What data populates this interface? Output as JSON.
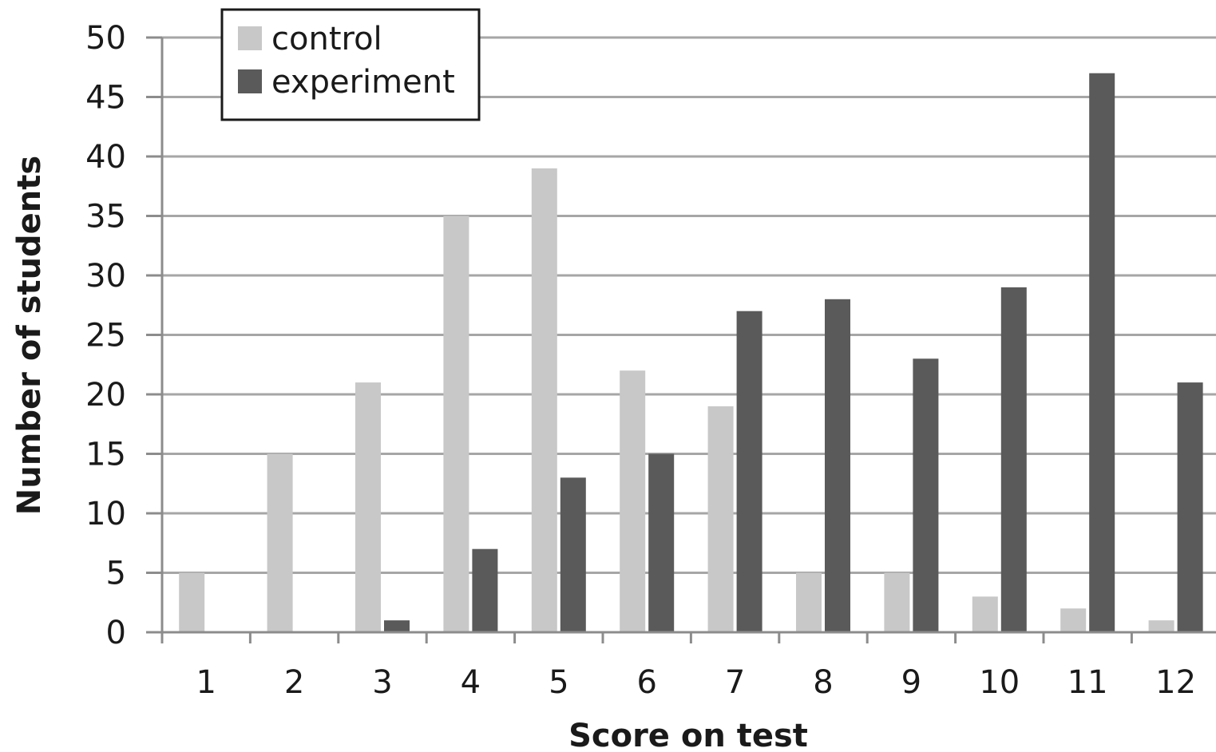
{
  "chart_data": {
    "type": "bar",
    "categories": [
      "1",
      "2",
      "3",
      "4",
      "5",
      "6",
      "7",
      "8",
      "9",
      "10",
      "11",
      "12"
    ],
    "series": [
      {
        "name": "control",
        "color": "#c8c8c8",
        "values": [
          5,
          15,
          21,
          35,
          39,
          22,
          19,
          5,
          5,
          3,
          2,
          1
        ]
      },
      {
        "name": "experiment",
        "color": "#5a5a5a",
        "values": [
          0,
          0,
          1,
          7,
          13,
          15,
          27,
          28,
          23,
          29,
          47,
          21
        ]
      }
    ],
    "xlabel": "Score on test",
    "ylabel": "Number of students",
    "ylim": [
      0,
      50
    ],
    "yticks": [
      0,
      5,
      10,
      15,
      20,
      25,
      30,
      35,
      40,
      45,
      50
    ],
    "grid": true,
    "legend_position": "top-left"
  }
}
